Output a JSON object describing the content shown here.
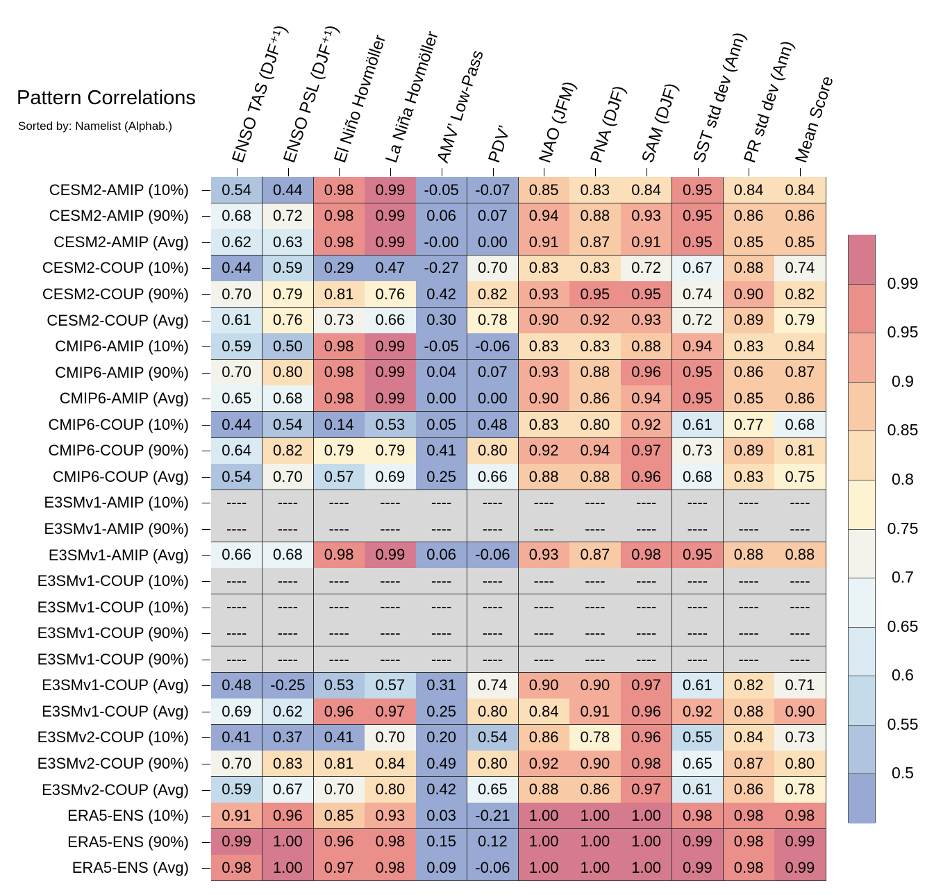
{
  "chart_data": {
    "type": "heatmap",
    "title": "Pattern Correlations",
    "subtitle": "Sorted by: Namelist (Alphab.)",
    "columns": [
      "ENSO TAS (DJF⁺¹)",
      "ENSO PSL (DJF⁺¹)",
      "El Niño Hovmöller",
      "La Niña Hovmöller",
      "AMV’ Low-Pass",
      "PDV’",
      "NAO (JFM)",
      "PNA (DJF)",
      "SAM (DJF)",
      "SST std dev (Ann)",
      "PR std dev (Ann)",
      "Mean Score"
    ],
    "rows": [
      "CESM2-AMIP (10%)",
      "CESM2-AMIP (90%)",
      "CESM2-AMIP (Avg)",
      "CESM2-COUP (10%)",
      "CESM2-COUP (90%)",
      "CESM2-COUP (Avg)",
      "CMIP6-AMIP (10%)",
      "CMIP6-AMIP (90%)",
      "CMIP6-AMIP (Avg)",
      "CMIP6-COUP (10%)",
      "CMIP6-COUP (90%)",
      "CMIP6-COUP (Avg)",
      "E3SMv1-AMIP (10%)",
      "E3SMv1-AMIP (90%)",
      "E3SMv1-AMIP (Avg)",
      "E3SMv1-COUP (10%)",
      "E3SMv1-COUP (10%)",
      "E3SMv1-COUP (90%)",
      "E3SMv1-COUP (90%)",
      "E3SMv1-COUP (Avg)",
      "E3SMv1-COUP (Avg)",
      "E3SMv2-COUP (10%)",
      "E3SMv2-COUP (90%)",
      "E3SMv2-COUP (Avg)",
      "ERA5-ENS (10%)",
      "ERA5-ENS (90%)",
      "ERA5-ENS (Avg)"
    ],
    "missing_label": "----",
    "values": [
      [
        "0.54",
        "0.44",
        "0.98",
        "0.99",
        "-0.05",
        "-0.07",
        "0.85",
        "0.83",
        "0.84",
        "0.95",
        "0.84",
        "0.84"
      ],
      [
        "0.68",
        "0.72",
        "0.98",
        "0.99",
        "0.06",
        "0.07",
        "0.94",
        "0.88",
        "0.93",
        "0.95",
        "0.86",
        "0.86"
      ],
      [
        "0.62",
        "0.63",
        "0.98",
        "0.99",
        "-0.00",
        "0.00",
        "0.91",
        "0.87",
        "0.91",
        "0.95",
        "0.85",
        "0.85"
      ],
      [
        "0.44",
        "0.59",
        "0.29",
        "0.47",
        "-0.27",
        "0.70",
        "0.83",
        "0.83",
        "0.72",
        "0.67",
        "0.88",
        "0.74"
      ],
      [
        "0.70",
        "0.79",
        "0.81",
        "0.76",
        "0.42",
        "0.82",
        "0.93",
        "0.95",
        "0.95",
        "0.74",
        "0.90",
        "0.82"
      ],
      [
        "0.61",
        "0.76",
        "0.73",
        "0.66",
        "0.30",
        "0.78",
        "0.90",
        "0.92",
        "0.93",
        "0.72",
        "0.89",
        "0.79"
      ],
      [
        "0.59",
        "0.50",
        "0.98",
        "0.99",
        "-0.05",
        "-0.06",
        "0.83",
        "0.83",
        "0.88",
        "0.94",
        "0.83",
        "0.84"
      ],
      [
        "0.70",
        "0.80",
        "0.98",
        "0.99",
        "0.04",
        "0.07",
        "0.93",
        "0.88",
        "0.96",
        "0.95",
        "0.86",
        "0.87"
      ],
      [
        "0.65",
        "0.68",
        "0.98",
        "0.99",
        "0.00",
        "0.00",
        "0.90",
        "0.86",
        "0.94",
        "0.95",
        "0.85",
        "0.86"
      ],
      [
        "0.44",
        "0.54",
        "0.14",
        "0.53",
        "0.05",
        "0.48",
        "0.83",
        "0.80",
        "0.92",
        "0.61",
        "0.77",
        "0.68"
      ],
      [
        "0.64",
        "0.82",
        "0.79",
        "0.79",
        "0.41",
        "0.80",
        "0.92",
        "0.94",
        "0.97",
        "0.73",
        "0.89",
        "0.81"
      ],
      [
        "0.54",
        "0.70",
        "0.57",
        "0.69",
        "0.25",
        "0.66",
        "0.88",
        "0.88",
        "0.96",
        "0.68",
        "0.83",
        "0.75"
      ],
      [
        null,
        null,
        null,
        null,
        null,
        null,
        null,
        null,
        null,
        null,
        null,
        null
      ],
      [
        null,
        null,
        null,
        null,
        null,
        null,
        null,
        null,
        null,
        null,
        null,
        null
      ],
      [
        "0.66",
        "0.68",
        "0.98",
        "0.99",
        "0.06",
        "-0.06",
        "0.93",
        "0.87",
        "0.98",
        "0.95",
        "0.88",
        "0.88"
      ],
      [
        null,
        null,
        null,
        null,
        null,
        null,
        null,
        null,
        null,
        null,
        null,
        null
      ],
      [
        null,
        null,
        null,
        null,
        null,
        null,
        null,
        null,
        null,
        null,
        null,
        null
      ],
      [
        null,
        null,
        null,
        null,
        null,
        null,
        null,
        null,
        null,
        null,
        null,
        null
      ],
      [
        null,
        null,
        null,
        null,
        null,
        null,
        null,
        null,
        null,
        null,
        null,
        null
      ],
      [
        "0.48",
        "-0.25",
        "0.53",
        "0.57",
        "0.31",
        "0.74",
        "0.90",
        "0.90",
        "0.97",
        "0.61",
        "0.82",
        "0.71"
      ],
      [
        "0.69",
        "0.62",
        "0.96",
        "0.97",
        "0.25",
        "0.80",
        "0.84",
        "0.91",
        "0.96",
        "0.92",
        "0.88",
        "0.90"
      ],
      [
        "0.41",
        "0.37",
        "0.41",
        "0.70",
        "0.20",
        "0.54",
        "0.86",
        "0.78",
        "0.96",
        "0.55",
        "0.84",
        "0.73"
      ],
      [
        "0.70",
        "0.83",
        "0.81",
        "0.84",
        "0.49",
        "0.80",
        "0.92",
        "0.90",
        "0.98",
        "0.65",
        "0.87",
        "0.80"
      ],
      [
        "0.59",
        "0.67",
        "0.70",
        "0.80",
        "0.42",
        "0.65",
        "0.88",
        "0.86",
        "0.97",
        "0.61",
        "0.86",
        "0.78"
      ],
      [
        "0.91",
        "0.96",
        "0.85",
        "0.93",
        "0.03",
        "-0.21",
        "1.00",
        "1.00",
        "1.00",
        "0.98",
        "0.98",
        "0.98"
      ],
      [
        "0.99",
        "1.00",
        "0.96",
        "0.98",
        "0.15",
        "0.12",
        "1.00",
        "1.00",
        "1.00",
        "0.99",
        "0.98",
        "0.99"
      ],
      [
        "0.98",
        "1.00",
        "0.97",
        "0.98",
        "0.09",
        "-0.06",
        "1.00",
        "1.00",
        "1.00",
        "0.99",
        "0.98",
        "0.99"
      ]
    ],
    "colorbar": {
      "labels": [
        "0.99",
        "0.95",
        "0.9",
        "0.85",
        "0.8",
        "0.75",
        "0.7",
        "0.65",
        "0.6",
        "0.55",
        "0.5"
      ],
      "thresholds": [
        0.5,
        0.55,
        0.6,
        0.65,
        0.7,
        0.75,
        0.8,
        0.85,
        0.9,
        0.95,
        0.99
      ],
      "colors": [
        "#98a9d3",
        "#aec4df",
        "#c3dbea",
        "#d9eaf3",
        "#eaf3f6",
        "#f3f3eb",
        "#fdf2d1",
        "#fbdfb8",
        "#f8caa6",
        "#f4ad98",
        "#eb8f8b",
        "#d67b8e"
      ],
      "missing_color": "#d8d8d8"
    }
  }
}
